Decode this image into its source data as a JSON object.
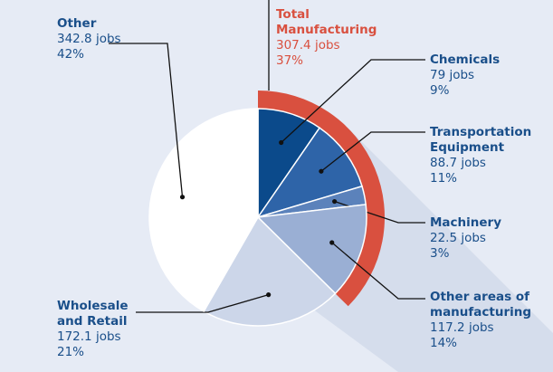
{
  "chart_data": {
    "type": "pie",
    "categories": [
      "Chemicals",
      "Transportation Equipment",
      "Machinery",
      "Other areas of manufacturing",
      "Wholesale and Retail",
      "Other"
    ],
    "values": [
      79,
      88.7,
      22.5,
      117.2,
      172.1,
      342.8
    ],
    "value_labels": [
      "79 jobs",
      "88.7 jobs",
      "22.5 jobs",
      "117.2 jobs",
      "172.1 jobs",
      "342.8 jobs"
    ],
    "shares": [
      9,
      11,
      3,
      14,
      21,
      42
    ],
    "share_labels": [
      "9%",
      "11%",
      "3%",
      "14%",
      "21%",
      "42%"
    ],
    "colors": [
      "#0b4a8b",
      "#2e64a8",
      "#5b82bb",
      "#9aafd4",
      "#ccd6e9",
      "#ffffff"
    ],
    "group": {
      "name": "Total Manufacturing",
      "value": 307.4,
      "value_label": "307.4 jobs",
      "share": 37,
      "share_label": "37%",
      "color": "#d9503f"
    }
  }
}
